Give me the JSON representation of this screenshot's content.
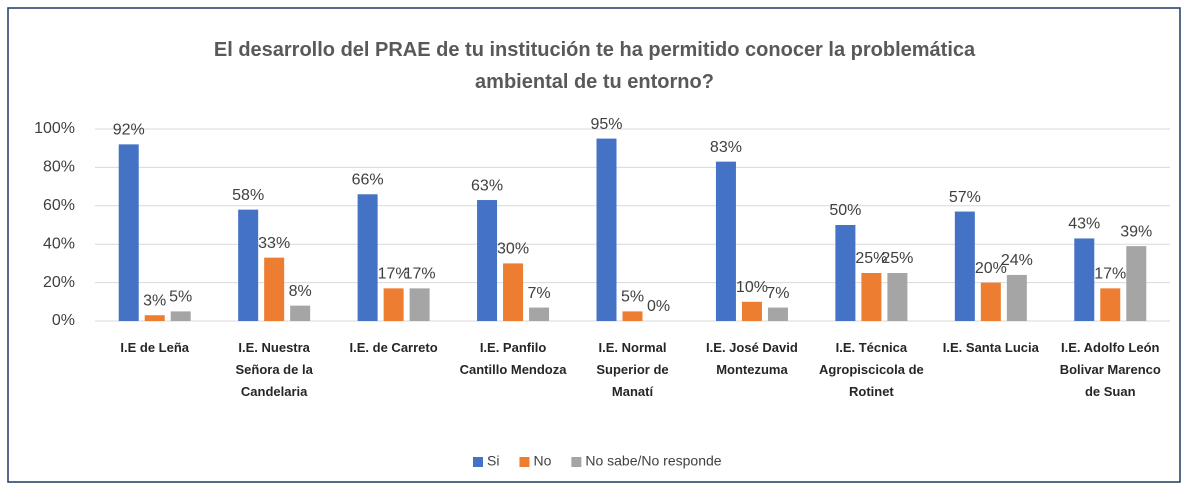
{
  "chart_data": {
    "type": "bar",
    "title": "El desarrollo del PRAE de tu institución te ha permitido conocer la problemática ambiental de tu entorno?",
    "categories": [
      "I.E de Leña",
      "I.E. Nuestra Señora de la Candelaria",
      "I.E. de Carreto",
      "I.E. Panfilo Cantillo Mendoza",
      "I.E. Normal Superior de Manatí",
      "I.E.  José David Montezuma",
      "I.E. Técnica Agropiscicola de Rotinet",
      "I.E. Santa Lucia",
      "I.E. Adolfo León Bolivar Marenco de Suan"
    ],
    "series": [
      {
        "name": "Si",
        "color": "#4472c4",
        "values": [
          92,
          58,
          66,
          63,
          95,
          83,
          50,
          57,
          43
        ],
        "value_labels": [
          "92%",
          "58%",
          "66%",
          "63%",
          "95%",
          "83%",
          "50%",
          "57%",
          "43%"
        ]
      },
      {
        "name": "No",
        "color": "#ed7d31",
        "values": [
          3,
          33,
          17,
          30,
          5,
          10,
          25,
          20,
          17
        ],
        "value_labels": [
          "3%",
          "33%",
          "17%",
          "30%",
          "5%",
          "10%",
          "25%",
          "20%",
          "17%"
        ]
      },
      {
        "name": "No sabe/No responde",
        "color": "#a5a5a5",
        "values": [
          5,
          8,
          17,
          7,
          0,
          7,
          25,
          24,
          39
        ],
        "value_labels": [
          "5%",
          "8%",
          "17%",
          "7%",
          "0%",
          "7%",
          "25%",
          "24%",
          "39%"
        ]
      }
    ],
    "ylim": [
      0,
      100
    ],
    "yticks": [
      {
        "value": 0,
        "label": "0%"
      },
      {
        "value": 20,
        "label": "20%"
      },
      {
        "value": 40,
        "label": "40%"
      },
      {
        "value": 60,
        "label": "60%"
      },
      {
        "value": 80,
        "label": "80%"
      },
      {
        "value": 100,
        "label": "100%"
      }
    ],
    "grid": true,
    "legend": "bottom"
  }
}
